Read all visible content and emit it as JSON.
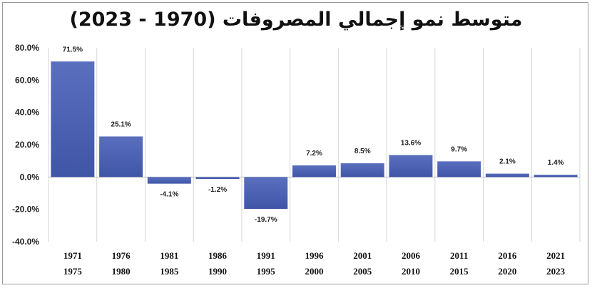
{
  "chart_data": {
    "type": "bar",
    "title": "متوسط نمو إجمالي المصروفات (1970 - 2023)",
    "xlabel": "",
    "ylabel": "",
    "ylim": [
      -40,
      80
    ],
    "yticks": [
      "80.0%",
      "60.0%",
      "40.0%",
      "20.0%",
      "0.0%",
      "-20.0%",
      "-40.0%"
    ],
    "ytick_values": [
      80,
      60,
      40,
      20,
      0,
      -20,
      -40
    ],
    "grid": "vertical",
    "categories": [
      {
        "line1": "1971",
        "line2": "1975"
      },
      {
        "line1": "1976",
        "line2": "1980"
      },
      {
        "line1": "1981",
        "line2": "1985"
      },
      {
        "line1": "1986",
        "line2": "1990"
      },
      {
        "line1": "1991",
        "line2": "1995"
      },
      {
        "line1": "1996",
        "line2": "2000"
      },
      {
        "line1": "2001",
        "line2": "2005"
      },
      {
        "line1": "2006",
        "line2": "2010"
      },
      {
        "line1": "2011",
        "line2": "2015"
      },
      {
        "line1": "2016",
        "line2": "2020"
      },
      {
        "line1": "2021",
        "line2": "2023"
      }
    ],
    "values": [
      71.5,
      25.1,
      -4.1,
      -1.2,
      -19.7,
      7.2,
      8.5,
      13.6,
      9.7,
      2.1,
      1.4
    ],
    "labels": [
      "71.5%",
      "25.1%",
      "-4.1%",
      "-1.2%",
      "-19.7%",
      "7.2%",
      "8.5%",
      "13.6%",
      "9.7%",
      "2.1%",
      "1.4%"
    ],
    "bar_color": "#4a5fae"
  }
}
